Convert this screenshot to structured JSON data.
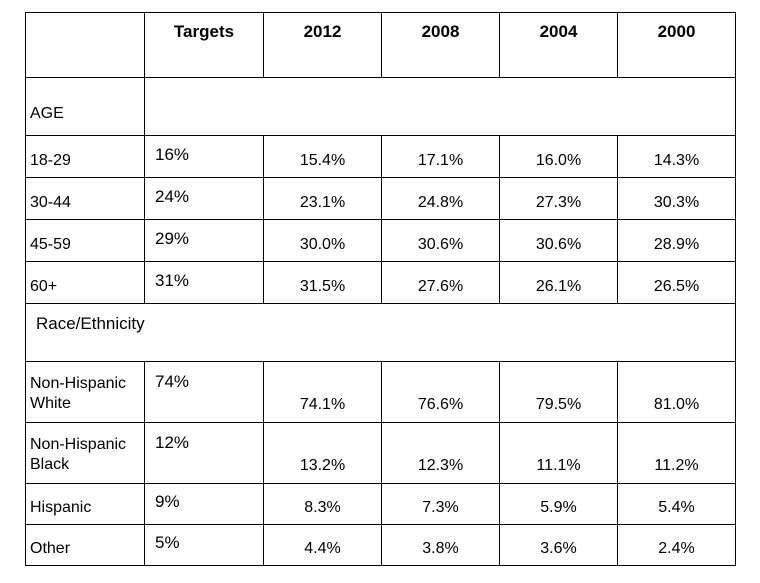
{
  "header": {
    "corner": "",
    "targets": "Targets",
    "years": [
      "2012",
      "2008",
      "2004",
      "2000"
    ]
  },
  "sections": [
    {
      "title": "AGE",
      "rows": [
        {
          "label": "18-29",
          "target": "16%",
          "values": [
            "15.4%",
            "17.1%",
            "16.0%",
            "14.3%"
          ]
        },
        {
          "label": "30-44",
          "target": "24%",
          "values": [
            "23.1%",
            "24.8%",
            "27.3%",
            "30.3%"
          ]
        },
        {
          "label": "45-59",
          "target": "29%",
          "values": [
            "30.0%",
            "30.6%",
            "30.6%",
            "28.9%"
          ]
        },
        {
          "label": "60+",
          "target": "31%",
          "values": [
            "31.5%",
            "27.6%",
            "26.1%",
            "26.5%"
          ]
        }
      ]
    },
    {
      "title": "Race/Ethnicity",
      "rows": [
        {
          "label": "Non-Hispanic White",
          "target": "74%",
          "values": [
            "74.1%",
            "76.6%",
            "79.5%",
            "81.0%"
          ]
        },
        {
          "label": "Non-Hispanic Black",
          "target": "12%",
          "values": [
            "13.2%",
            "12.3%",
            "11.1%",
            "11.2%"
          ]
        },
        {
          "label": "Hispanic",
          "target": "9%",
          "values": [
            "8.3%",
            "7.3%",
            "5.9%",
            "5.4%"
          ]
        },
        {
          "label": "Other",
          "target": "5%",
          "values": [
            "4.4%",
            "3.8%",
            "3.6%",
            "2.4%"
          ]
        }
      ]
    }
  ]
}
